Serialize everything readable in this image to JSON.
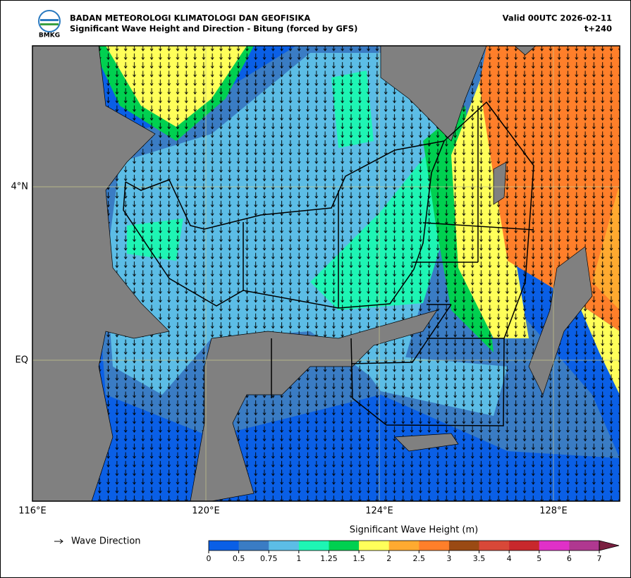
{
  "header": {
    "logo_text": "BMKG",
    "agency": "BADAN METEOROLOGI KLIMATOLOGI DAN GEOFISIKA",
    "subtitle": "Significant Wave Height and Direction - Bitung (forced by GFS)",
    "valid": "Valid 00UTC 2026-02-11",
    "lead": "t+240"
  },
  "map": {
    "lon_labels": [
      "116°E",
      "120°E",
      "124°E",
      "128°E"
    ],
    "lat_labels": [
      "4°N",
      "EQ"
    ]
  },
  "legend": {
    "wave_direction": "Wave Direction"
  },
  "colorbar": {
    "title": "Significant Wave Height (m)",
    "ticks": [
      "0",
      "0.5",
      "0.75",
      "1",
      "1.25",
      "1.5",
      "2",
      "2.5",
      "3",
      "3.5",
      "4",
      "5",
      "6",
      "7"
    ],
    "colors": [
      "#0a5fe6",
      "#3a7cc4",
      "#5cbde6",
      "#1ef5b4",
      "#00d050",
      "#ffff5a",
      "#ffaa30",
      "#ff7f2a",
      "#9a4a14",
      "#d84838",
      "#c8282c",
      "#e030c8",
      "#b03890"
    ],
    "extend_color": "#7a2040"
  }
}
